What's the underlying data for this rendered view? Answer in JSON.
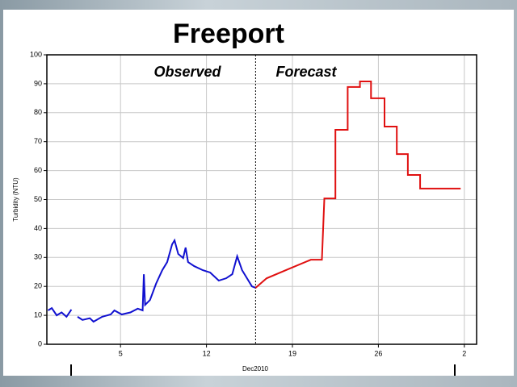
{
  "chart_data": {
    "type": "line",
    "title": "Freeport",
    "annotations": [
      "Observed",
      "Forecast"
    ],
    "divider_x": 16,
    "x_label": "Dec2010",
    "y_label": "Turbidity (NTU)",
    "xlim": [
      -1,
      34
    ],
    "xticks": [
      5,
      12,
      19,
      26,
      {
        "value": 33,
        "label": "2"
      }
    ],
    "ylim": [
      0,
      100
    ],
    "yticks": [
      0,
      10,
      20,
      30,
      40,
      50,
      60,
      70,
      80,
      90,
      100
    ],
    "grid": true,
    "series": [
      {
        "name": "Observed",
        "color": "#1010d0",
        "x": [
          -0.9,
          -0.6,
          -0.2,
          0.2,
          0.6,
          1,
          1.3,
          1.5,
          1.9,
          2.5,
          2.8,
          3.5,
          4.2,
          4.5,
          5.1,
          5.8,
          6.4,
          6.8,
          6.9,
          7,
          7.4,
          7.9,
          8.4,
          8.8,
          9.2,
          9.4,
          9.7,
          10.1,
          10.3,
          10.5,
          11,
          11.7,
          12.3,
          13,
          13.6,
          14.1,
          14.5,
          14.9,
          15.3,
          15.7,
          16
        ],
        "values": [
          11.7,
          12.5,
          10,
          11,
          9.5,
          12,
          null,
          9.5,
          8.4,
          9,
          7.8,
          9.5,
          10.3,
          11.7,
          10.3,
          11,
          12.3,
          11.7,
          24.2,
          13.6,
          15.3,
          21,
          25.6,
          28.4,
          34.5,
          35.9,
          31.2,
          29.8,
          33.4,
          28.4,
          27,
          25.6,
          24.8,
          22,
          22.8,
          24.2,
          30.4,
          25.6,
          22.8,
          20,
          19.5
        ]
      },
      {
        "name": "Forecast",
        "color": "#e01010",
        "x": [
          16,
          16.9,
          18.8,
          20.5,
          21.4,
          21.6,
          22.5,
          22.5,
          23.5,
          23.5,
          24.5,
          24.5,
          25.4,
          25.4,
          26.5,
          26.5,
          27.5,
          27.5,
          28.4,
          28.4,
          29.4,
          29.4,
          32.7
        ],
        "values": [
          19.5,
          22.8,
          26.2,
          29.2,
          29.2,
          50.4,
          50.4,
          74.1,
          74.1,
          88.9,
          88.9,
          90.8,
          90.8,
          85,
          85,
          75.2,
          75.2,
          65.7,
          65.7,
          58.5,
          58.5,
          53.8,
          53.8
        ]
      }
    ]
  }
}
